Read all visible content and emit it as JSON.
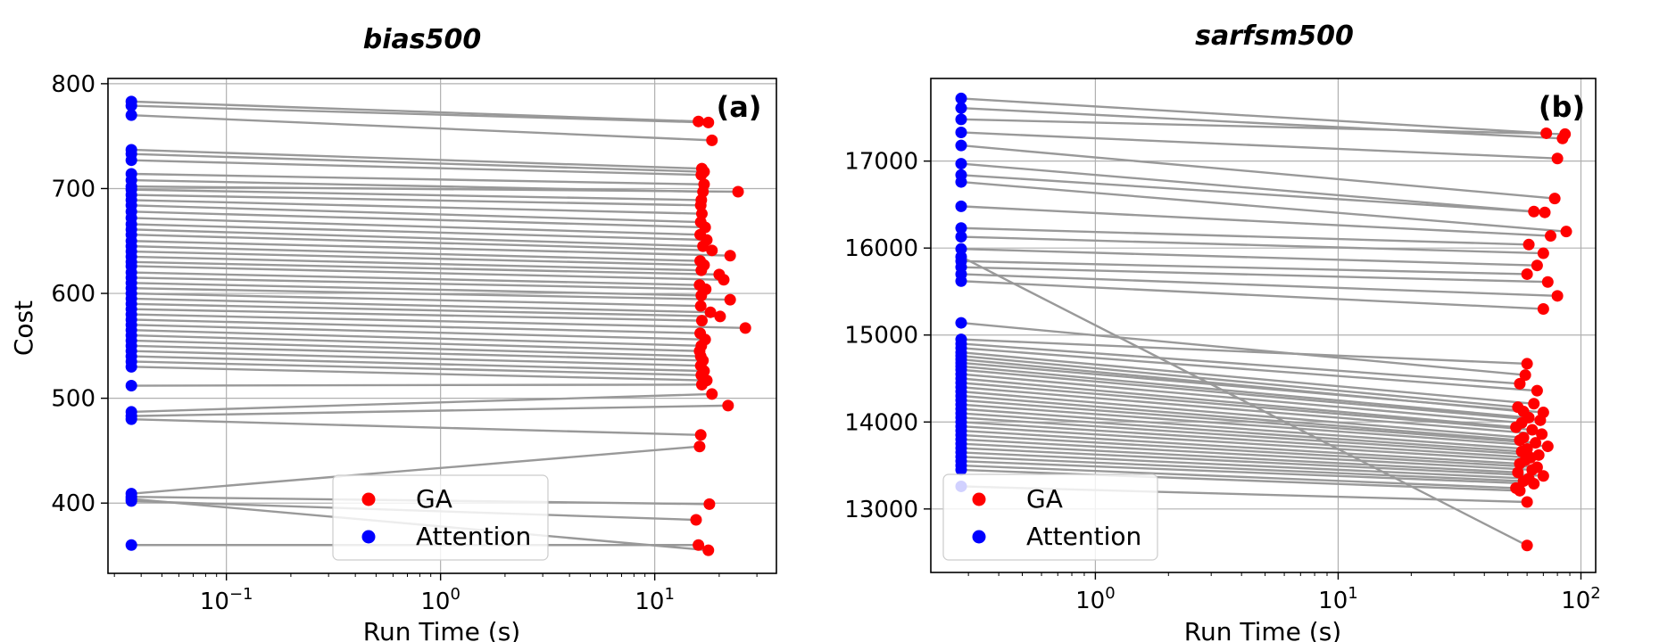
{
  "chart_data": [
    {
      "type": "scatter",
      "panel_label": "(a)",
      "title": "bias500",
      "xlabel": "Run Time (s)",
      "ylabel": "Cost",
      "xscale": "log",
      "xlim": [
        0.028,
        37
      ],
      "ylim": [
        333,
        805
      ],
      "xticks": [
        {
          "value": 0.1,
          "base": "10",
          "exp": "−1"
        },
        {
          "value": 1,
          "base": "10",
          "exp": "0"
        },
        {
          "value": 10,
          "base": "10",
          "exp": "1"
        }
      ],
      "yticks": [
        400,
        500,
        600,
        700,
        800
      ],
      "grid": true,
      "legend": {
        "placement": "lower-center",
        "entries": [
          {
            "name": "GA",
            "color": "#ff0000"
          },
          {
            "name": "Attention",
            "color": "#0000ff"
          }
        ]
      },
      "series": [
        {
          "name": "Attention",
          "color": "#0000ff",
          "x": 0.036
        },
        {
          "name": "GA",
          "color": "#ff0000"
        }
      ],
      "pairs": [
        [
          783,
          764,
          16
        ],
        [
          779,
          763,
          17.8
        ],
        [
          770,
          746,
          18.5
        ],
        [
          737,
          719,
          16.6
        ],
        [
          733,
          716,
          17
        ],
        [
          727,
          713,
          16.5
        ],
        [
          714,
          704,
          17
        ],
        [
          708,
          697,
          16.8
        ],
        [
          702,
          697,
          24.5
        ],
        [
          699,
          689,
          16.5
        ],
        [
          694,
          684,
          16.4
        ],
        [
          689,
          676,
          16.6
        ],
        [
          684,
          668,
          16.4
        ],
        [
          678,
          663,
          17.2
        ],
        [
          672,
          656,
          16.3
        ],
        [
          666,
          651,
          17.5
        ],
        [
          661,
          645,
          16.8
        ],
        [
          656,
          641,
          18.5
        ],
        [
          650,
          636,
          22.5
        ],
        [
          645,
          631,
          16.3
        ],
        [
          640,
          627,
          17
        ],
        [
          635,
          622,
          16.5
        ],
        [
          630,
          618,
          20
        ],
        [
          626,
          613,
          21
        ],
        [
          620,
          608,
          16.2
        ],
        [
          615,
          604,
          17.3
        ],
        [
          610,
          598,
          16.5
        ],
        [
          605,
          594,
          22.5
        ],
        [
          600,
          588,
          16.4
        ],
        [
          595,
          582,
          18.2
        ],
        [
          590,
          578,
          20.2
        ],
        [
          585,
          574,
          16.6
        ],
        [
          580,
          567,
          26.5
        ],
        [
          575,
          562,
          16.3
        ],
        [
          570,
          556,
          17.2
        ],
        [
          565,
          550,
          16.5
        ],
        [
          560,
          545,
          16.2
        ],
        [
          555,
          540,
          16.4
        ],
        [
          550,
          536,
          16.8
        ],
        [
          545,
          531,
          16.4
        ],
        [
          540,
          526,
          17
        ],
        [
          535,
          522,
          16.5
        ],
        [
          530,
          517,
          17.5
        ],
        [
          512,
          513,
          16.6
        ],
        [
          487,
          504,
          18.5
        ],
        [
          483,
          493,
          22
        ],
        [
          480,
          465,
          16.4
        ],
        [
          409,
          454,
          16.2
        ],
        [
          406,
          399,
          18
        ],
        [
          402,
          384,
          15.6
        ],
        [
          360,
          360,
          16
        ],
        [
          404,
          355,
          17.8
        ]
      ]
    },
    {
      "type": "scatter",
      "panel_label": "(b)",
      "title": "sarfsm500",
      "xlabel": "Run Time (s)",
      "ylabel": "",
      "xscale": "log",
      "xlim": [
        0.21,
        115
      ],
      "ylim": [
        12270,
        17950
      ],
      "xticks": [
        {
          "value": 1,
          "base": "10",
          "exp": "0"
        },
        {
          "value": 10,
          "base": "10",
          "exp": "1"
        },
        {
          "value": 100,
          "base": "10",
          "exp": "2"
        }
      ],
      "yticks": [
        13000,
        14000,
        15000,
        16000,
        17000
      ],
      "grid": true,
      "legend": {
        "placement": "lower-left",
        "entries": [
          {
            "name": "GA",
            "color": "#ff0000"
          },
          {
            "name": "Attention",
            "color": "#0000ff"
          }
        ]
      },
      "series": [
        {
          "name": "Attention",
          "color": "#0000ff",
          "x": 0.28
        },
        {
          "name": "GA",
          "color": "#ff0000"
        }
      ],
      "pairs": [
        [
          17720,
          17320,
          72
        ],
        [
          17610,
          17260,
          84
        ],
        [
          17480,
          17310,
          86
        ],
        [
          17330,
          17030,
          80
        ],
        [
          17180,
          16570,
          78
        ],
        [
          16970,
          16420,
          64
        ],
        [
          16840,
          16410,
          71
        ],
        [
          16760,
          16190,
          87
        ],
        [
          16480,
          16140,
          75
        ],
        [
          16230,
          16040,
          61
        ],
        [
          16130,
          15940,
          70
        ],
        [
          15990,
          15800,
          66
        ],
        [
          15850,
          15700,
          60
        ],
        [
          15780,
          15610,
          73
        ],
        [
          15700,
          15450,
          80
        ],
        [
          15620,
          15300,
          70
        ],
        [
          15140,
          14540,
          59
        ],
        [
          14950,
          14670,
          60
        ],
        [
          14900,
          14440,
          56
        ],
        [
          14850,
          14360,
          66
        ],
        [
          14800,
          14210,
          64
        ],
        [
          14760,
          14170,
          55
        ],
        [
          14720,
          14120,
          58
        ],
        [
          14680,
          14110,
          70
        ],
        [
          14640,
          14050,
          61
        ],
        [
          14600,
          14020,
          68
        ],
        [
          14550,
          13990,
          57
        ],
        [
          14500,
          13940,
          54
        ],
        [
          14450,
          13910,
          63
        ],
        [
          14400,
          13860,
          69
        ],
        [
          14350,
          13820,
          58
        ],
        [
          14300,
          13790,
          56
        ],
        [
          14250,
          13760,
          65
        ],
        [
          14200,
          13720,
          73
        ],
        [
          14150,
          13690,
          60
        ],
        [
          14100,
          13660,
          57
        ],
        [
          14050,
          13620,
          67
        ],
        [
          14000,
          13590,
          62
        ],
        [
          13950,
          13560,
          59
        ],
        [
          13900,
          13520,
          56
        ],
        [
          13850,
          13480,
          66
        ],
        [
          13800,
          13450,
          63
        ],
        [
          13750,
          13420,
          55
        ],
        [
          13700,
          13380,
          70
        ],
        [
          13650,
          13350,
          61
        ],
        [
          13600,
          13320,
          58
        ],
        [
          13550,
          13290,
          64
        ],
        [
          13500,
          13240,
          54
        ],
        [
          13450,
          13210,
          56
        ],
        [
          13260,
          13080,
          60
        ],
        [
          15900,
          12580,
          60
        ]
      ]
    }
  ]
}
